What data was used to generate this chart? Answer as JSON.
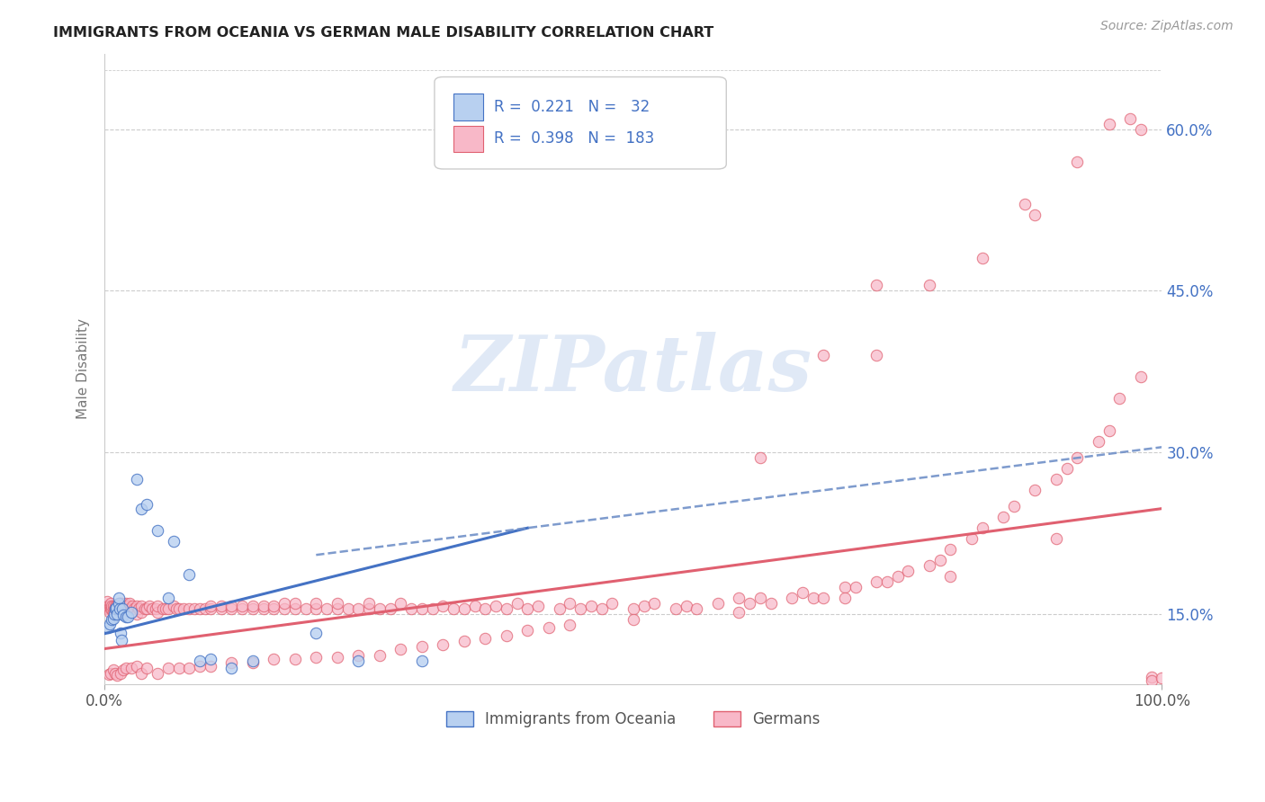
{
  "title": "IMMIGRANTS FROM OCEANIA VS GERMAN MALE DISABILITY CORRELATION CHART",
  "source": "Source: ZipAtlas.com",
  "ylabel": "Male Disability",
  "xlim": [
    0.0,
    1.0
  ],
  "ylim": [
    0.085,
    0.67
  ],
  "yticks": [
    0.15,
    0.3,
    0.45,
    0.6
  ],
  "ytick_labels": [
    "15.0%",
    "30.0%",
    "45.0%",
    "60.0%"
  ],
  "xticks": [
    0.0,
    1.0
  ],
  "xtick_labels": [
    "0.0%",
    "100.0%"
  ],
  "legend_R_blue": "0.221",
  "legend_N_blue": "32",
  "legend_R_pink": "0.398",
  "legend_N_pink": "183",
  "legend_label_blue": "Immigrants from Oceania",
  "legend_label_pink": "Germans",
  "blue_fill": "#B8D0F0",
  "blue_edge": "#4472C4",
  "pink_fill": "#F8B8C8",
  "pink_edge": "#E06070",
  "trendline_blue": "#4472C4",
  "trendline_dashed": "#7090C8",
  "trendline_pink": "#E06070",
  "watermark": "ZIPatlas",
  "watermark_color": "#C8D8F0",
  "grid_color": "#CCCCCC",
  "title_color": "#222222",
  "source_color": "#999999",
  "ytick_color": "#4472C4",
  "xtick_color": "#555555",
  "ylabel_color": "#777777",
  "blue_x": [
    0.003,
    0.005,
    0.007,
    0.008,
    0.009,
    0.01,
    0.011,
    0.012,
    0.013,
    0.013,
    0.014,
    0.015,
    0.016,
    0.017,
    0.018,
    0.02,
    0.022,
    0.025,
    0.03,
    0.035,
    0.04,
    0.05,
    0.06,
    0.065,
    0.08,
    0.09,
    0.1,
    0.12,
    0.14,
    0.2,
    0.24,
    0.3
  ],
  "blue_y": [
    0.138,
    0.141,
    0.145,
    0.146,
    0.15,
    0.155,
    0.156,
    0.15,
    0.16,
    0.165,
    0.155,
    0.133,
    0.126,
    0.155,
    0.149,
    0.148,
    0.148,
    0.152,
    0.275,
    0.248,
    0.252,
    0.228,
    0.165,
    0.218,
    0.187,
    0.107,
    0.108,
    0.1,
    0.107,
    0.133,
    0.107,
    0.107
  ],
  "pink_x_dense": [
    0.002,
    0.003,
    0.004,
    0.005,
    0.005,
    0.006,
    0.006,
    0.007,
    0.007,
    0.008,
    0.008,
    0.009,
    0.009,
    0.01,
    0.01,
    0.011,
    0.011,
    0.012,
    0.012,
    0.013,
    0.013,
    0.014,
    0.014,
    0.015,
    0.015,
    0.016,
    0.016,
    0.017,
    0.017,
    0.018,
    0.018,
    0.019,
    0.02,
    0.02,
    0.021,
    0.022,
    0.023,
    0.024,
    0.025,
    0.026,
    0.028,
    0.03,
    0.03,
    0.032,
    0.035,
    0.035,
    0.038,
    0.04,
    0.042,
    0.045,
    0.048,
    0.05,
    0.05,
    0.055,
    0.058,
    0.06,
    0.065,
    0.068,
    0.07,
    0.075,
    0.08,
    0.085,
    0.09,
    0.095,
    0.1,
    0.1,
    0.11,
    0.11,
    0.12,
    0.12,
    0.13,
    0.13,
    0.14,
    0.14,
    0.15,
    0.15,
    0.16,
    0.16,
    0.17,
    0.17,
    0.18,
    0.18,
    0.19,
    0.2,
    0.2,
    0.21,
    0.22,
    0.22,
    0.23,
    0.24,
    0.25,
    0.25,
    0.26,
    0.27,
    0.28,
    0.29,
    0.3,
    0.31,
    0.32,
    0.33,
    0.34,
    0.35,
    0.36,
    0.37,
    0.38,
    0.39,
    0.4,
    0.41,
    0.43,
    0.44,
    0.45,
    0.46,
    0.47,
    0.48,
    0.5,
    0.51,
    0.52,
    0.54,
    0.55,
    0.56,
    0.58,
    0.6,
    0.61,
    0.62,
    0.63,
    0.65,
    0.66,
    0.67,
    0.68,
    0.7,
    0.71,
    0.73,
    0.74,
    0.75,
    0.76,
    0.78,
    0.79,
    0.8,
    0.82,
    0.83,
    0.85,
    0.86,
    0.88,
    0.9,
    0.91,
    0.92,
    0.94,
    0.95,
    0.96,
    0.98,
    0.99,
    0.99,
    1.0,
    0.004,
    0.006,
    0.008,
    0.01,
    0.012,
    0.015,
    0.018,
    0.02,
    0.025,
    0.03,
    0.035,
    0.04,
    0.05,
    0.06,
    0.07,
    0.08,
    0.09,
    0.1,
    0.12,
    0.14,
    0.16,
    0.18,
    0.2,
    0.22,
    0.24,
    0.26,
    0.28,
    0.3,
    0.32,
    0.34,
    0.36,
    0.38,
    0.4,
    0.42,
    0.44,
    0.5,
    0.6,
    0.7,
    0.8,
    0.9
  ],
  "pink_y_dense": [
    0.162,
    0.158,
    0.155,
    0.152,
    0.158,
    0.155,
    0.16,
    0.155,
    0.158,
    0.152,
    0.158,
    0.15,
    0.155,
    0.155,
    0.158,
    0.152,
    0.158,
    0.155,
    0.158,
    0.155,
    0.158,
    0.155,
    0.16,
    0.155,
    0.16,
    0.155,
    0.158,
    0.155,
    0.16,
    0.152,
    0.158,
    0.155,
    0.155,
    0.16,
    0.155,
    0.158,
    0.155,
    0.16,
    0.155,
    0.158,
    0.155,
    0.15,
    0.158,
    0.155,
    0.152,
    0.158,
    0.155,
    0.155,
    0.158,
    0.155,
    0.155,
    0.152,
    0.158,
    0.155,
    0.155,
    0.155,
    0.158,
    0.155,
    0.155,
    0.155,
    0.155,
    0.155,
    0.155,
    0.155,
    0.155,
    0.158,
    0.155,
    0.158,
    0.155,
    0.158,
    0.155,
    0.158,
    0.155,
    0.158,
    0.155,
    0.158,
    0.155,
    0.158,
    0.155,
    0.16,
    0.155,
    0.16,
    0.155,
    0.155,
    0.16,
    0.155,
    0.155,
    0.16,
    0.155,
    0.155,
    0.155,
    0.16,
    0.155,
    0.155,
    0.16,
    0.155,
    0.155,
    0.155,
    0.158,
    0.155,
    0.155,
    0.158,
    0.155,
    0.158,
    0.155,
    0.16,
    0.155,
    0.158,
    0.155,
    0.16,
    0.155,
    0.158,
    0.155,
    0.16,
    0.155,
    0.158,
    0.16,
    0.155,
    0.158,
    0.155,
    0.16,
    0.165,
    0.16,
    0.165,
    0.16,
    0.165,
    0.17,
    0.165,
    0.165,
    0.175,
    0.175,
    0.18,
    0.18,
    0.185,
    0.19,
    0.195,
    0.2,
    0.21,
    0.22,
    0.23,
    0.24,
    0.25,
    0.265,
    0.275,
    0.285,
    0.295,
    0.31,
    0.32,
    0.35,
    0.37,
    0.092,
    0.088,
    0.091,
    0.094,
    0.095,
    0.098,
    0.095,
    0.093,
    0.095,
    0.098,
    0.1,
    0.1,
    0.102,
    0.095,
    0.1,
    0.095,
    0.1,
    0.1,
    0.1,
    0.102,
    0.102,
    0.105,
    0.105,
    0.108,
    0.108,
    0.11,
    0.11,
    0.112,
    0.112,
    0.118,
    0.12,
    0.122,
    0.125,
    0.128,
    0.13,
    0.135,
    0.138,
    0.14,
    0.145,
    0.152,
    0.165,
    0.185,
    0.22
  ],
  "pink_outlier_x": [
    0.73,
    0.78,
    0.83,
    0.87,
    0.88,
    0.92,
    0.95,
    0.97,
    0.98,
    0.73,
    0.68,
    0.62
  ],
  "pink_outlier_y": [
    0.455,
    0.455,
    0.48,
    0.53,
    0.52,
    0.57,
    0.605,
    0.61,
    0.6,
    0.39,
    0.39,
    0.295
  ],
  "blue_trend_x0": 0.0,
  "blue_trend_y0": 0.132,
  "blue_trend_x1": 0.4,
  "blue_trend_y1": 0.23,
  "dashed_trend_x0": 0.2,
  "dashed_trend_y0": 0.205,
  "dashed_trend_x1": 1.0,
  "dashed_trend_y1": 0.305,
  "pink_trend_x0": 0.0,
  "pink_trend_y0": 0.118,
  "pink_trend_x1": 1.0,
  "pink_trend_y1": 0.248
}
